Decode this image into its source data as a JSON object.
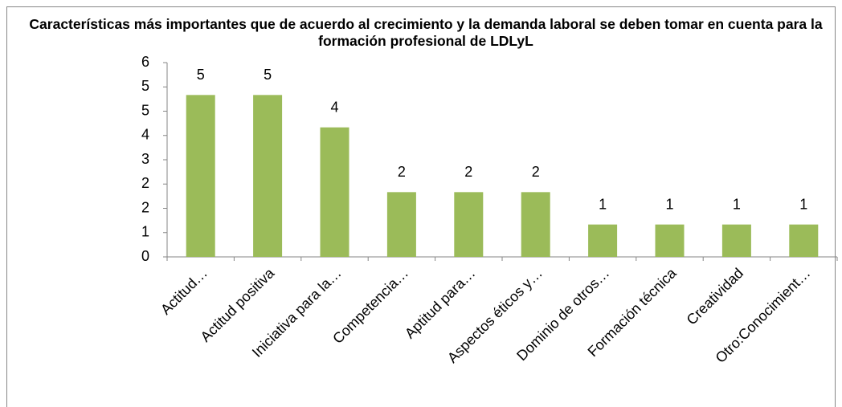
{
  "chart_data": {
    "type": "bar",
    "title": "Características más importantes que de acuerdo al crecimiento y la demanda laboral se deben tomar en cuenta para la formación profesional de LDLyL",
    "categories": [
      "Actitud…",
      "Actitud positiva",
      "Iniciativa para la…",
      "Competencia…",
      "Aptitud para…",
      "Aspectos éticos y…",
      "Dominio de otros…",
      "Formación técnica",
      "Creatividad",
      "Otro:Conocimient…"
    ],
    "values": [
      5,
      5,
      4,
      2,
      2,
      2,
      1,
      1,
      1,
      1
    ],
    "color": "#9bbb59",
    "ylim": [
      0,
      6
    ],
    "yticks": [
      0,
      {
        "value": 0.75,
        "label": "1"
      },
      {
        "value": 1.5,
        "label": "2"
      },
      {
        "value": 2.25,
        "label": "2"
      },
      3,
      {
        "value": 3.75,
        "label": "4"
      },
      {
        "value": 4.5,
        "label": "5"
      },
      {
        "value": 5.25,
        "label": "5"
      },
      6
    ],
    "grid": false
  }
}
